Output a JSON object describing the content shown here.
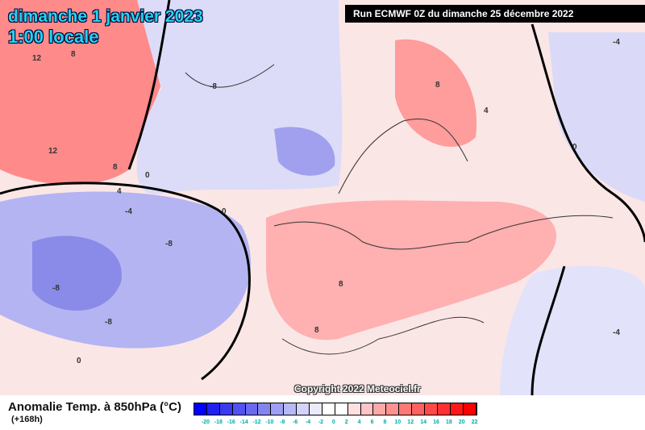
{
  "header": {
    "date": "dimanche 1 janvier 2023",
    "time": "1:00 locale",
    "run": "Run ECMWF 0Z du dimanche 25 décembre 2022"
  },
  "copyright": "Copyright 2022 Meteociel.fr",
  "legend": {
    "title": "Anomalie Temp. à 850hPa (°C)",
    "subtitle": "(+168h)",
    "ticks": [
      "-20",
      "-18",
      "-16",
      "-14",
      "-12",
      "-10",
      "-8",
      "-6",
      "-4",
      "-2",
      "0",
      "2",
      "4",
      "6",
      "8",
      "10",
      "12",
      "14",
      "16",
      "18",
      "20",
      "22"
    ],
    "colors": [
      "#0000ff",
      "#2020f0",
      "#3a3af0",
      "#5252f0",
      "#6a6af0",
      "#8484f0",
      "#9e9ef2",
      "#b8b8f6",
      "#d2d2fa",
      "#eaeafd",
      "#ffffff",
      "#ffffff",
      "#ffe0e0",
      "#ffc4c4",
      "#ffa8a8",
      "#ff9090",
      "#ff7878",
      "#ff6060",
      "#ff4848",
      "#ff3030",
      "#ff1818",
      "#ff0000"
    ]
  },
  "contour_labels": [
    "12",
    "8",
    "12",
    "8",
    "4",
    "0",
    "-8",
    "-4",
    "-8",
    "-8",
    "-8",
    "0",
    "8",
    "8",
    "4",
    "8",
    "0",
    "-4",
    "-4",
    "0"
  ]
}
